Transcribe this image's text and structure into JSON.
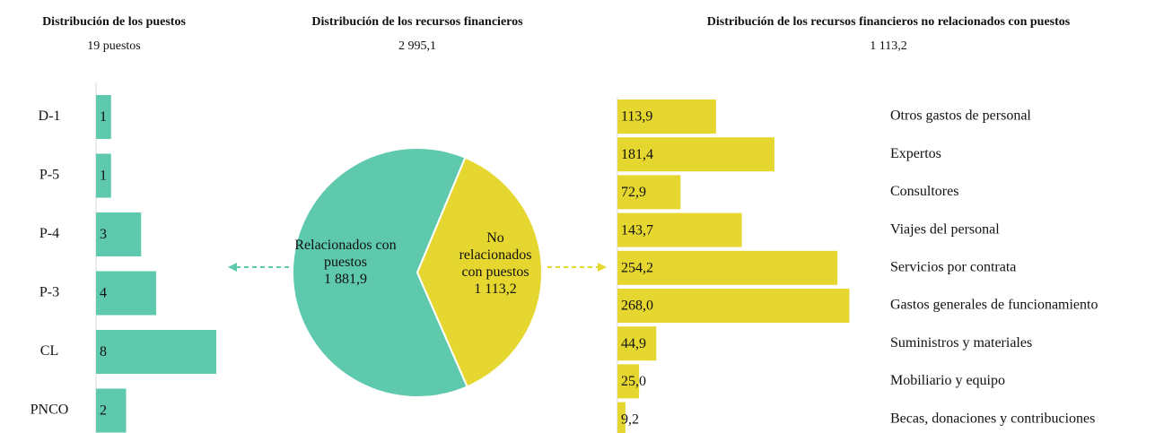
{
  "chart_data": [
    {
      "type": "bar",
      "orientation": "horizontal",
      "title": "Distribución de los puestos",
      "subtitle": "19 puestos",
      "categories": [
        "D-1",
        "P-5",
        "P-4",
        "P-3",
        "CL",
        "PNCO"
      ],
      "values": [
        1,
        1,
        3,
        4,
        8,
        2
      ],
      "color": "#5ec9ad",
      "xlim": [
        0,
        8
      ]
    },
    {
      "type": "pie",
      "title": "Distribución de los recursos financieros",
      "subtitle": "2 995,1",
      "categories": [
        "Relacionados con puestos",
        "No relacionados con puestos"
      ],
      "values": [
        1881.9,
        1113.2
      ],
      "value_labels": [
        "1 881,9",
        "1 113,2"
      ],
      "colors": [
        "#5ec9ad",
        "#e5d630"
      ]
    },
    {
      "type": "bar",
      "orientation": "horizontal",
      "title": "Distribución de los recursos financieros no relacionados con puestos",
      "subtitle": "1 113,2",
      "categories": [
        "Otros gastos de personal",
        "Expertos",
        "Consultores",
        "Viajes del personal",
        "Servicios por contrata",
        "Gastos generales de funcionamiento",
        "Suministros y materiales",
        "Mobiliario y equipo",
        "Becas, donaciones y contribuciones"
      ],
      "values": [
        113.9,
        181.4,
        72.9,
        143.7,
        254.2,
        268.0,
        44.9,
        25.0,
        9.2
      ],
      "value_labels": [
        "113,9",
        "181,4",
        "72,9",
        "143,7",
        "254,2",
        "268,0",
        "44,9",
        "25,0",
        "9,2"
      ],
      "color": "#e5d630",
      "xlim": [
        0,
        280
      ]
    }
  ]
}
